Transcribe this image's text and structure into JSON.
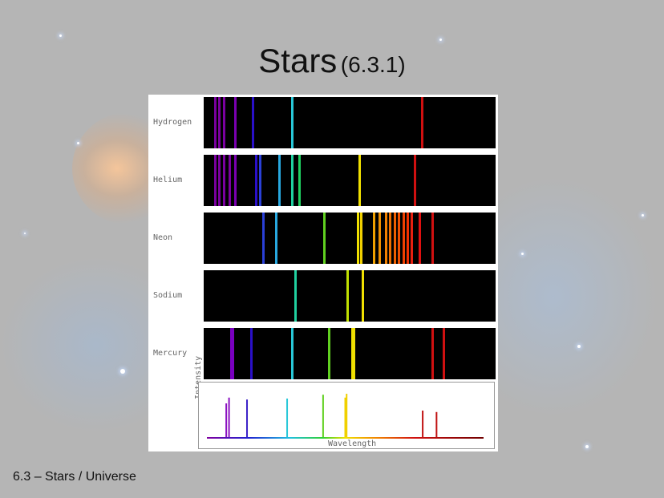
{
  "slide": {
    "title_main": "Stars",
    "title_code": "(6.3.1)",
    "footer": "6.3 – Stars / Universe"
  },
  "figure": {
    "rows": [
      {
        "label": "Hydrogen",
        "lines": [
          {
            "pos": 0.035,
            "color": "#7a00a0"
          },
          {
            "pos": 0.05,
            "color": "#7a00a0"
          },
          {
            "pos": 0.065,
            "color": "#7a00a0"
          },
          {
            "pos": 0.105,
            "color": "#7a00b0"
          },
          {
            "pos": 0.165,
            "color": "#2a10c8"
          },
          {
            "pos": 0.3,
            "color": "#28c8d8"
          },
          {
            "pos": 0.745,
            "color": "#d01010"
          }
        ]
      },
      {
        "label": "Helium",
        "lines": [
          {
            "pos": 0.035,
            "color": "#7a00a0"
          },
          {
            "pos": 0.05,
            "color": "#7a00a0"
          },
          {
            "pos": 0.065,
            "color": "#7a00a0"
          },
          {
            "pos": 0.085,
            "color": "#7a00a0"
          },
          {
            "pos": 0.105,
            "color": "#7a00b0"
          },
          {
            "pos": 0.175,
            "color": "#2a10c8"
          },
          {
            "pos": 0.19,
            "color": "#2a40d8"
          },
          {
            "pos": 0.255,
            "color": "#28a8e0"
          },
          {
            "pos": 0.3,
            "color": "#20d0a0"
          },
          {
            "pos": 0.325,
            "color": "#20d060"
          },
          {
            "pos": 0.53,
            "color": "#f0e000"
          },
          {
            "pos": 0.72,
            "color": "#d01010"
          }
        ]
      },
      {
        "label": "Neon",
        "lines": [
          {
            "pos": 0.2,
            "color": "#2a40d8"
          },
          {
            "pos": 0.245,
            "color": "#28a8e0"
          },
          {
            "pos": 0.41,
            "color": "#60d020"
          },
          {
            "pos": 0.525,
            "color": "#f0e000"
          },
          {
            "pos": 0.535,
            "color": "#f0d000"
          },
          {
            "pos": 0.58,
            "color": "#f0a000"
          },
          {
            "pos": 0.6,
            "color": "#f09000"
          },
          {
            "pos": 0.62,
            "color": "#f08000"
          },
          {
            "pos": 0.635,
            "color": "#f07000"
          },
          {
            "pos": 0.65,
            "color": "#f06000"
          },
          {
            "pos": 0.665,
            "color": "#f05000"
          },
          {
            "pos": 0.68,
            "color": "#f04000"
          },
          {
            "pos": 0.695,
            "color": "#f03000"
          },
          {
            "pos": 0.71,
            "color": "#e82010"
          },
          {
            "pos": 0.735,
            "color": "#e01010"
          },
          {
            "pos": 0.78,
            "color": "#d01010"
          }
        ]
      },
      {
        "label": "Sodium",
        "lines": [
          {
            "pos": 0.31,
            "color": "#20d0a0"
          },
          {
            "pos": 0.49,
            "color": "#c0e000"
          },
          {
            "pos": 0.54,
            "color": "#f0e000"
          }
        ]
      },
      {
        "label": "Mercury",
        "lines": [
          {
            "pos": 0.09,
            "color": "#7a00c0"
          },
          {
            "pos": 0.095,
            "color": "#7a00c0"
          },
          {
            "pos": 0.16,
            "color": "#2a10c8"
          },
          {
            "pos": 0.3,
            "color": "#28c8d8"
          },
          {
            "pos": 0.425,
            "color": "#60d020"
          },
          {
            "pos": 0.505,
            "color": "#f0e000"
          },
          {
            "pos": 0.51,
            "color": "#f0e000"
          },
          {
            "pos": 0.78,
            "color": "#d01010"
          },
          {
            "pos": 0.82,
            "color": "#d01010"
          }
        ]
      }
    ],
    "graph": {
      "y_label": "Intensity",
      "x_label": "Wavelength",
      "peaks": [
        {
          "pos": 0.07,
          "height": 0.7,
          "color": "#8a10c0"
        },
        {
          "pos": 0.08,
          "height": 0.82,
          "color": "#8a10c0"
        },
        {
          "pos": 0.145,
          "height": 0.78,
          "color": "#3a20c8"
        },
        {
          "pos": 0.29,
          "height": 0.8,
          "color": "#28c8d8"
        },
        {
          "pos": 0.42,
          "height": 0.88,
          "color": "#60d020"
        },
        {
          "pos": 0.5,
          "height": 0.82,
          "color": "#f0d000"
        },
        {
          "pos": 0.505,
          "height": 0.9,
          "color": "#f0d000"
        },
        {
          "pos": 0.78,
          "height": 0.55,
          "color": "#c01010"
        },
        {
          "pos": 0.83,
          "height": 0.52,
          "color": "#c01010"
        }
      ]
    }
  }
}
